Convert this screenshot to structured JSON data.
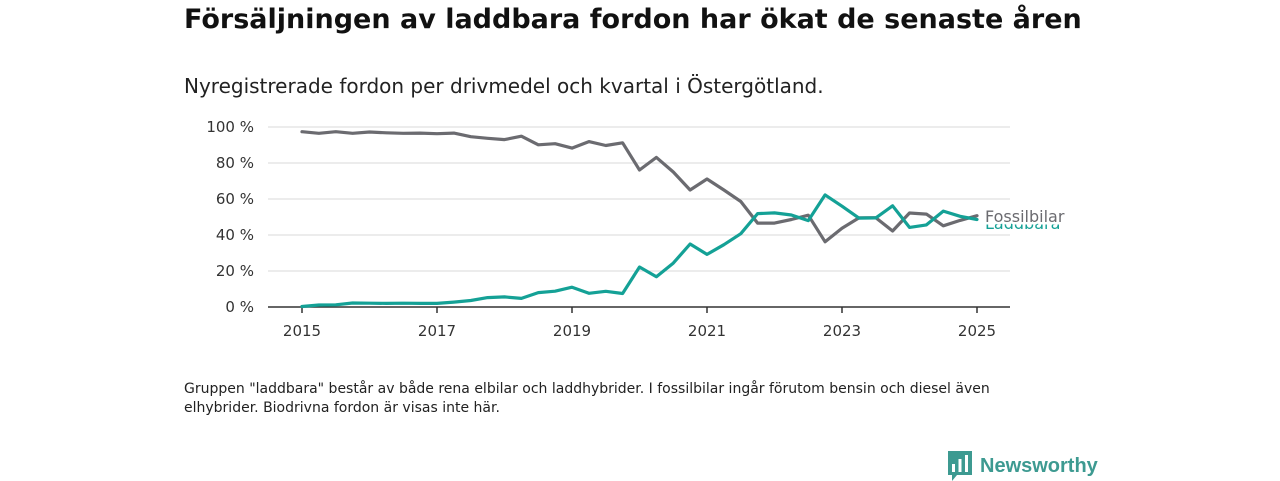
{
  "header": {
    "title": "Försäljningen av laddbara fordon har ökat de senaste åren",
    "subtitle": "Nyregistrerade fordon per drivmedel och kvartal i Östergötland."
  },
  "footnote": "Gruppen \"laddbara\" består av både rena elbilar och laddhybrider. I fossilbilar ingår förutom bensin och diesel även elhybrider. Biodrivna fordon är visas inte här.",
  "brand": {
    "name": "Newsworthy",
    "icon": "newsworthy-logo-icon",
    "color": "#3d9a91"
  },
  "chart_data": {
    "type": "line",
    "x_unit": "quarter",
    "x": [
      "2015-Q1",
      "2015-Q2",
      "2015-Q3",
      "2015-Q4",
      "2016-Q1",
      "2016-Q2",
      "2016-Q3",
      "2016-Q4",
      "2017-Q1",
      "2017-Q2",
      "2017-Q3",
      "2017-Q4",
      "2018-Q1",
      "2018-Q2",
      "2018-Q3",
      "2018-Q4",
      "2019-Q1",
      "2019-Q2",
      "2019-Q3",
      "2019-Q4",
      "2020-Q1",
      "2020-Q2",
      "2020-Q3",
      "2020-Q4",
      "2021-Q1",
      "2021-Q2",
      "2021-Q3",
      "2021-Q4",
      "2022-Q1",
      "2022-Q2",
      "2022-Q3",
      "2022-Q4",
      "2023-Q1",
      "2023-Q2",
      "2023-Q3",
      "2023-Q4",
      "2024-Q1",
      "2024-Q2",
      "2024-Q3",
      "2024-Q4",
      "2025-Q1"
    ],
    "xticks": [
      "2015",
      "2017",
      "2019",
      "2021",
      "2023",
      "2025"
    ],
    "yticks": [
      "0 %",
      "20 %",
      "40 %",
      "60 %",
      "80 %",
      "100 %"
    ],
    "ylim": [
      0,
      100
    ],
    "grid": true,
    "series": [
      {
        "name": "Fossilbilar",
        "color": "#6b6b70",
        "values": [
          97.4,
          96.5,
          97.4,
          96.5,
          97.2,
          96.8,
          96.5,
          96.6,
          96.3,
          96.6,
          94.6,
          93.7,
          93.0,
          94.9,
          90.1,
          90.7,
          88.3,
          91.9,
          89.7,
          91.2,
          76.1,
          83.1,
          75.0,
          65.0,
          71.1,
          65.0,
          58.6,
          46.6,
          46.6,
          48.6,
          51.0,
          36.2,
          43.8,
          49.5,
          49.6,
          42.2,
          52.2,
          51.6,
          45.1,
          48.1,
          50.7
        ]
      },
      {
        "name": "Laddbara",
        "color": "#14a196",
        "values": [
          0.3,
          1.1,
          1.2,
          2.2,
          2.1,
          2.0,
          2.1,
          2.0,
          2.0,
          2.7,
          3.6,
          5.2,
          5.6,
          4.8,
          8.0,
          8.8,
          11.0,
          7.6,
          8.7,
          7.5,
          22.2,
          16.8,
          24.4,
          35.0,
          29.2,
          34.6,
          40.7,
          51.9,
          52.3,
          51.1,
          48.0,
          62.3,
          56.0,
          49.4,
          49.5,
          56.2,
          44.2,
          45.6,
          53.3,
          50.4,
          48.6
        ]
      }
    ]
  }
}
